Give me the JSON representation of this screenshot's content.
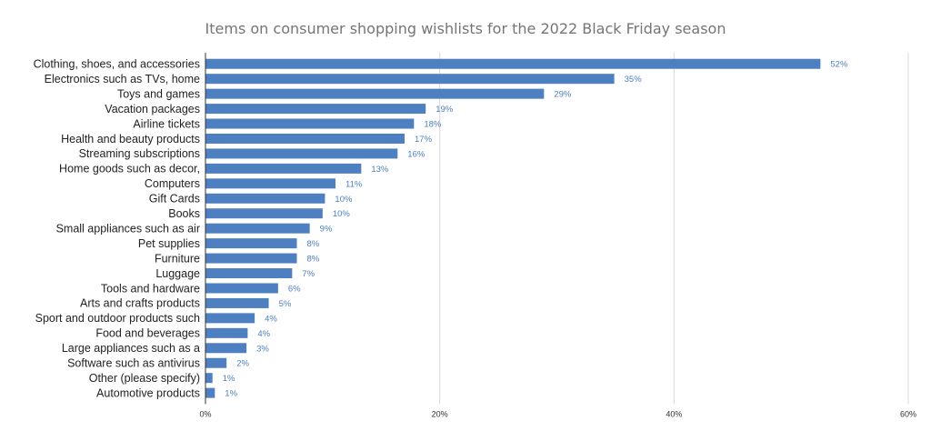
{
  "chart_data": {
    "type": "bar",
    "orientation": "horizontal",
    "title": "Items on consumer shopping wishlists for the 2022 Black Friday season",
    "xlabel": "",
    "ylabel": "",
    "xlim": [
      0,
      60
    ],
    "x_ticks": [
      "0%",
      "20%",
      "40%",
      "60%"
    ],
    "x_tick_values": [
      0,
      20,
      40,
      60
    ],
    "grid": true,
    "bar_color": "#4e7fc1",
    "label_color": "#4e7fc1",
    "categories": [
      "Clothing, shoes, and accessories",
      "Electronics such as TVs, home",
      "Toys and games",
      "Vacation packages",
      "Airline tickets",
      "Health and beauty products",
      "Streaming subscriptions",
      "Home goods such as decor,",
      "Computers",
      "Gift Cards",
      "Books",
      "Small appliances such as air",
      "Pet supplies",
      "Furniture",
      "Luggage",
      "Tools and hardware",
      "Arts and crafts products",
      "Sport and outdoor products such",
      "Food and beverages",
      "Large appliances such as a",
      "Software such as antivirus",
      "Other (please specify)",
      "Automotive products"
    ],
    "values": [
      52.5,
      34.9,
      28.9,
      18.8,
      17.8,
      17.0,
      16.4,
      13.3,
      11.1,
      10.2,
      10.0,
      8.9,
      7.8,
      7.8,
      7.4,
      6.2,
      5.4,
      4.2,
      3.6,
      3.5,
      1.8,
      0.6,
      0.8
    ],
    "value_labels": [
      "52%",
      "35%",
      "29%",
      "19%",
      "18%",
      "17%",
      "16%",
      "13%",
      "11%",
      "10%",
      "10%",
      "9%",
      "8%",
      "8%",
      "7%",
      "6%",
      "5%",
      "4%",
      "4%",
      "3%",
      "2%",
      "1%",
      "1%"
    ]
  }
}
